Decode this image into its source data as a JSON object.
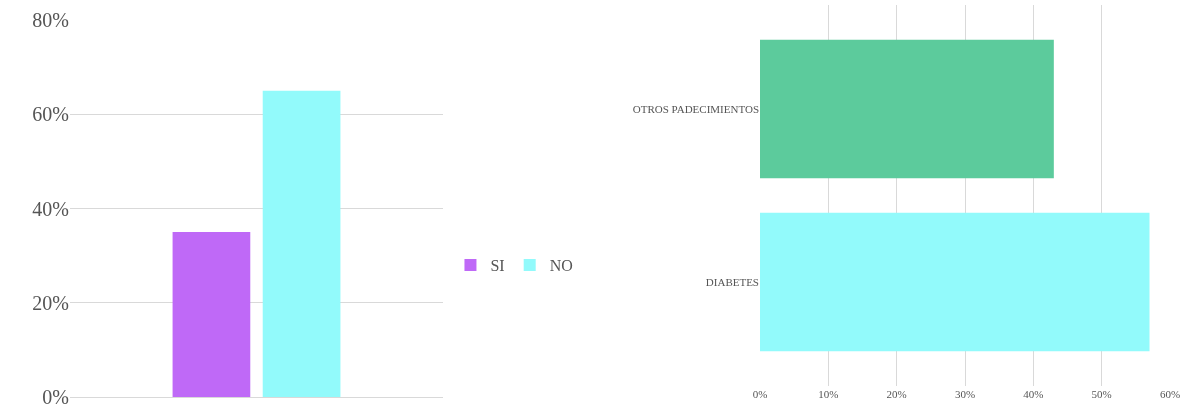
{
  "chart_data": [
    {
      "type": "bar",
      "categories": [
        null
      ],
      "series": [
        {
          "name": "SI",
          "color": "#bf69f7",
          "values": [
            35
          ]
        },
        {
          "name": "NO",
          "color": "#92fafb",
          "values": [
            65
          ]
        }
      ],
      "ylim": [
        0,
        80
      ],
      "yticks": [
        {
          "value": 0,
          "label": "0%"
        },
        {
          "value": 20,
          "label": "20%"
        },
        {
          "value": 40,
          "label": "40%"
        },
        {
          "value": 60,
          "label": "60%"
        },
        {
          "value": 80,
          "label": "80%"
        }
      ],
      "grid": "y",
      "legend": "right"
    },
    {
      "type": "bar",
      "orientation": "horizontal",
      "categories": [
        "OTROS PADECIMIENTOS",
        "DIABETES"
      ],
      "values": [
        43,
        57
      ],
      "colors": [
        "#5ccb9c",
        "#92fafb"
      ],
      "xlim": [
        0,
        60
      ],
      "xticks": [
        {
          "value": 0,
          "label": "0%"
        },
        {
          "value": 10,
          "label": "10%"
        },
        {
          "value": 20,
          "label": "20%"
        },
        {
          "value": 30,
          "label": "30%"
        },
        {
          "value": 40,
          "label": "40%"
        },
        {
          "value": 50,
          "label": "50%"
        },
        {
          "value": 60,
          "label": "60%"
        }
      ],
      "grid": "x"
    }
  ]
}
